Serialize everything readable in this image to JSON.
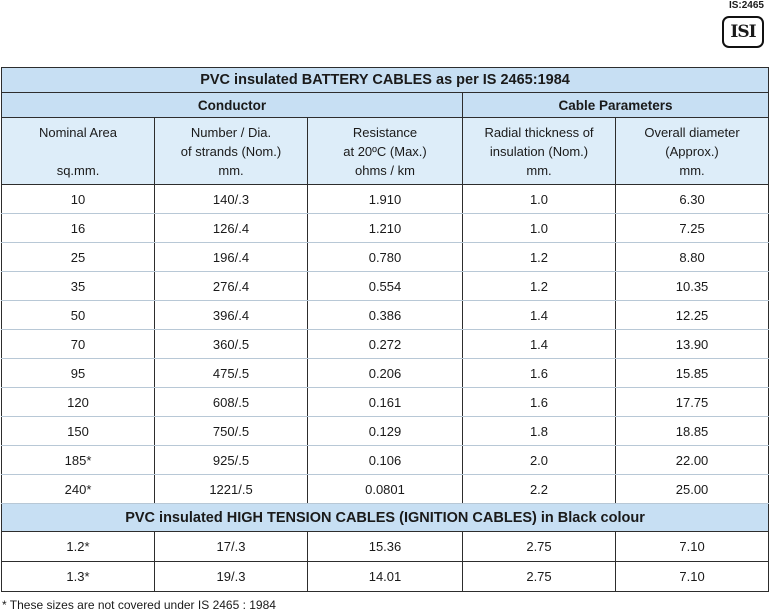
{
  "standard_label": "IS:2465",
  "logo_text": "ISI",
  "table_title": "PVC insulated BATTERY CABLES as per IS 2465:1984",
  "groups": {
    "conductor": "Conductor",
    "cable_parameters": "Cable Parameters"
  },
  "columns": [
    {
      "line1": "Nominal Area",
      "line2": "",
      "line3": "sq.mm."
    },
    {
      "line1": "Number / Dia.",
      "line2": "of strands (Nom.)",
      "line3": "mm."
    },
    {
      "line1": "Resistance",
      "line2": "at 20ºC (Max.)",
      "line3": "ohms / km"
    },
    {
      "line1": "Radial thickness of",
      "line2": "insulation (Nom.)",
      "line3": "mm."
    },
    {
      "line1": "Overall diameter",
      "line2": "(Approx.)",
      "line3": "mm."
    }
  ],
  "battery_rows": [
    [
      "10",
      "140/.3",
      "1.910",
      "1.0",
      "6.30"
    ],
    [
      "16",
      "126/.4",
      "1.210",
      "1.0",
      "7.25"
    ],
    [
      "25",
      "196/.4",
      "0.780",
      "1.2",
      "8.80"
    ],
    [
      "35",
      "276/.4",
      "0.554",
      "1.2",
      "10.35"
    ],
    [
      "50",
      "396/.4",
      "0.386",
      "1.4",
      "12.25"
    ],
    [
      "70",
      "360/.5",
      "0.272",
      "1.4",
      "13.90"
    ],
    [
      "95",
      "475/.5",
      "0.206",
      "1.6",
      "15.85"
    ],
    [
      "120",
      "608/.5",
      "0.161",
      "1.6",
      "17.75"
    ],
    [
      "150",
      "750/.5",
      "0.129",
      "1.8",
      "18.85"
    ],
    [
      "185*",
      "925/.5",
      "0.106",
      "2.0",
      "22.00"
    ],
    [
      "240*",
      "1221/.5",
      "0.0801",
      "2.2",
      "25.00"
    ]
  ],
  "ignition_title": "PVC insulated HIGH TENSION CABLES (IGNITION CABLES) in Black colour",
  "ignition_rows": [
    [
      "1.2*",
      "17/.3",
      "15.36",
      "2.75",
      "7.10"
    ],
    [
      "1.3*",
      "19/.3",
      "14.01",
      "2.75",
      "7.10"
    ]
  ],
  "footnote": "* These sizes are not covered under IS 2465 : 1984"
}
